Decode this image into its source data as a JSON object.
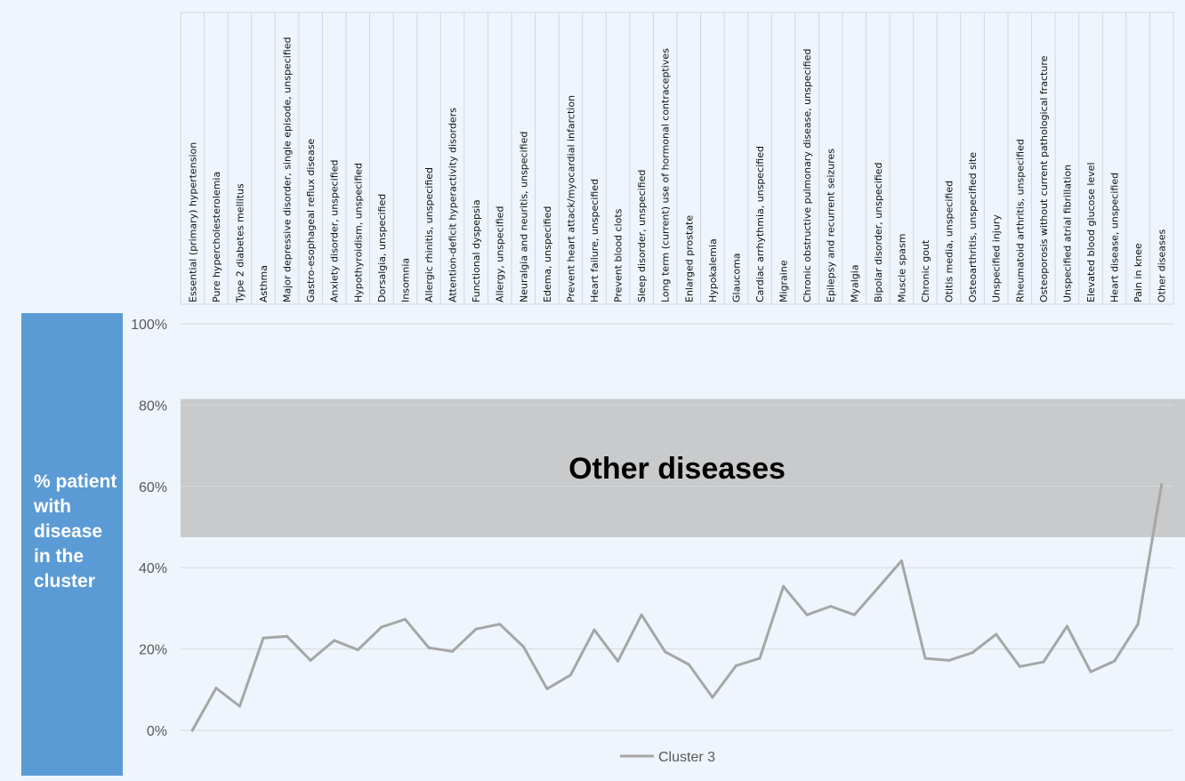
{
  "side_panel": {
    "label": "% patient with disease in the cluster",
    "color": "#5b9bd5"
  },
  "chart_data": {
    "type": "line",
    "categories": [
      "Essential (primary) hypertension",
      "Pure hypercholesterolemia",
      "Type 2 diabetes mellitus",
      "Asthma",
      "Major depressive disorder, single episode, unspecified",
      "Gastro-esophageal reflux disease",
      "Anxiety disorder, unspecified",
      "Hypothyroidism, unspecified",
      "Dorsalgia, unspecified",
      "Insomnia",
      "Allergic rhinitis, unspecified",
      "Attention-deficit hyperactivity disorders",
      "Functional dyspepsia",
      "Allergy, unspecified",
      "Neuralgia and neuritis, unspecified",
      "Edema, unspecified",
      "Prevent heart attack/myocardial infarction",
      "Heart failure, unspecified",
      "Prevent blood clots",
      "Sleep disorder, unspecified",
      "Long term (current) use of hormonal contraceptives",
      "Enlarged prostate",
      "Hypokalemia",
      "Glaucoma",
      "Cardiac arrhythmia, unspecified",
      "Migraine",
      "Chronic obstructive pulmonary disease, unspecified",
      "Epilepsy and recurrent seizures",
      "Myalgia",
      "Bipolar disorder, unspecified",
      "Muscle spasm",
      "Chronic gout",
      "Otitis media, unspecified",
      "Osteoarthritis, unspecified site",
      "Unspecified injury",
      "Rheumatoid arthritis, unspecified",
      "Osteoporosis without current pathological fracture",
      "Unspecified atrial fibrillation",
      "Elevated blood glucose level",
      "Heart disease, unspecified",
      "Pain in knee",
      "Other diseases"
    ],
    "series": [
      {
        "name": "Cluster 3",
        "color": "#a6a6a6",
        "values": [
          0,
          10.4,
          5.9,
          22.7,
          23.1,
          17.2,
          22.1,
          19.8,
          25.4,
          27.3,
          20.3,
          19.4,
          24.9,
          26.1,
          20.6,
          10.2,
          13.6,
          24.7,
          17,
          28.4,
          19.3,
          16.2,
          8.1,
          15.9,
          17.7,
          35.4,
          28.4,
          30.5,
          28.4,
          35,
          41.7,
          17.7,
          17.2,
          19.1,
          23.6,
          15.7,
          16.8,
          25.6,
          14.4,
          17,
          26.1,
          60.5
        ]
      }
    ],
    "band": {
      "label": "Other diseases",
      "from": 47.5,
      "to": 81.5,
      "color": "#c8cacc"
    },
    "ylim": [
      0,
      100
    ],
    "yticks": [
      "0%",
      "20%",
      "40%",
      "60%",
      "80%",
      "100%"
    ],
    "grid": true,
    "legend": "bottom"
  }
}
